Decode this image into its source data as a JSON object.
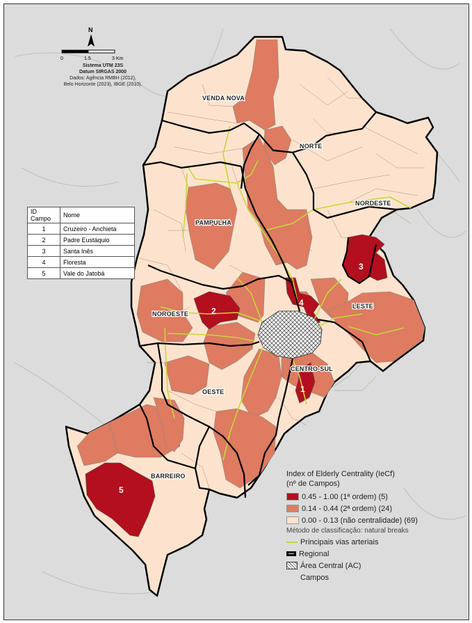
{
  "north": {
    "letter": "N"
  },
  "scale": {
    "ticks": [
      "0",
      "1.5",
      "3 Km"
    ],
    "system": "Sistema UTM 23S",
    "datum": "Datum SIRGAS 2000",
    "source_1": "Dados: Agência RMBH (2012),",
    "source_2": "Belo Horizonte (2023), IBGE (2010)."
  },
  "colors": {
    "background": "#dcdcdc",
    "class_1": "#b30f1e",
    "class_2": "#de7b60",
    "class_3": "#fde3cd",
    "roads": "#c8d63a",
    "regional_border": "#000000"
  },
  "regions": [
    {
      "name": "VENDA NOVA"
    },
    {
      "name": "NORTE"
    },
    {
      "name": "NORDESTE"
    },
    {
      "name": "PAMPULHA"
    },
    {
      "name": "NOROESTE"
    },
    {
      "name": "LESTE"
    },
    {
      "name": "CENTRO-SUL"
    },
    {
      "name": "OESTE"
    },
    {
      "name": "BARREIRO"
    }
  ],
  "campos_table": {
    "header": {
      "id": "ID Campo",
      "name": "Nome"
    },
    "rows": [
      {
        "id": "1",
        "name": "Cruzeiro - Anchieta"
      },
      {
        "id": "2",
        "name": "Padre Eustáquio"
      },
      {
        "id": "3",
        "name": "Santa Inês"
      },
      {
        "id": "4",
        "name": "Floresta"
      },
      {
        "id": "5",
        "name": "Vale do Jatobá"
      }
    ]
  },
  "map_labels": [
    "1",
    "2",
    "3",
    "4",
    "5"
  ],
  "legend": {
    "title_1": "Index of Elderly Centrality (IeCf)",
    "title_2": "(nº de Campos)",
    "classes": [
      {
        "label": "0.45 - 1.00 (1ª ordem) (5)",
        "color": "#b30f1e"
      },
      {
        "label": "0.14 - 0.44 (2ª ordem) (24)",
        "color": "#de7b60"
      },
      {
        "label": "0.00 - 0.13 (não centralidade) (69)",
        "color": "#fde3cd"
      }
    ],
    "method": "Método de classificação: natural breaks",
    "roads": "Principais vias arteriais",
    "regional": "Regional",
    "central_area": "Área Central (AC)",
    "campos": "Campos"
  }
}
